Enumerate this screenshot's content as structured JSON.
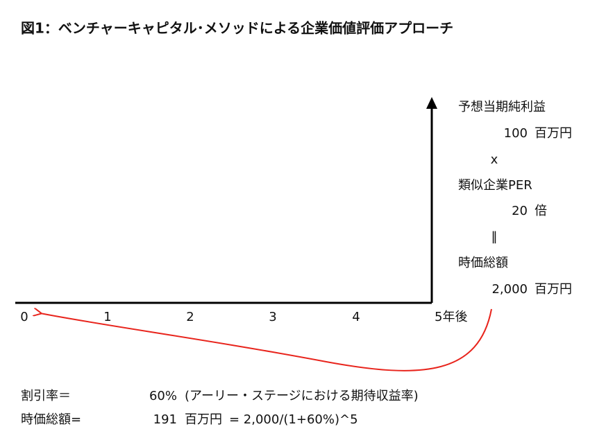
{
  "title": "図1：ベンチャーキャピタル･メソッドによる企業価値評価アプローチ",
  "timeline": {
    "labels": [
      "0",
      "1",
      "2",
      "3",
      "4",
      "5年後"
    ]
  },
  "valuation": {
    "forecast_label": "予想当期純利益",
    "forecast_value": "100",
    "forecast_unit": "百万円",
    "times": "x",
    "per_label": "類似企業PER",
    "per_value": "20",
    "per_unit": "倍",
    "equals": "‖",
    "market_cap_label": "時価総額",
    "market_cap_value": "2,000",
    "market_cap_unit": "百万円"
  },
  "discount": {
    "rate_label": "割引率＝",
    "rate_value": "60%",
    "rate_note": "(アーリー・ステージにおける期待収益率)",
    "pv_label": "時価総額=",
    "pv_value": "191",
    "pv_unit": "百万円",
    "pv_formula": "= 2,000/(1+60%)^5"
  }
}
